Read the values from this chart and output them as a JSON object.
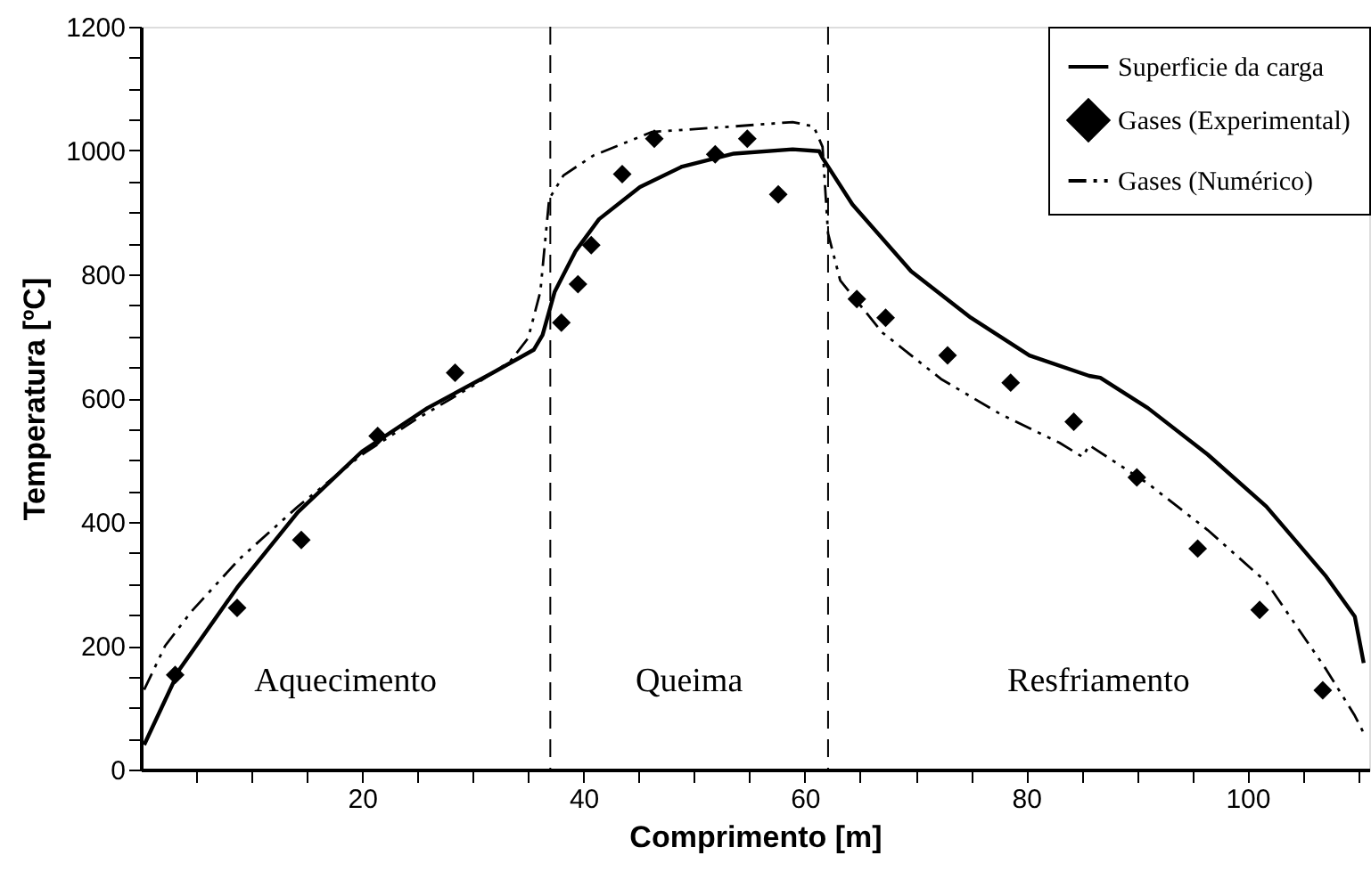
{
  "chart_data": {
    "type": "line",
    "xlabel": "Comprimento [m]",
    "ylabel": "Temperatura [ºC]",
    "xlim": [
      0,
      111
    ],
    "ylim": [
      0,
      1200
    ],
    "xticks": [
      {
        "value": 5,
        "label": null
      },
      {
        "value": 10,
        "label": null
      },
      {
        "value": 15,
        "label": null
      },
      20,
      {
        "value": 25,
        "label": null
      },
      {
        "value": 30,
        "label": null
      },
      {
        "value": 35,
        "label": null
      },
      40,
      {
        "value": 45,
        "label": null
      },
      {
        "value": 50,
        "label": null
      },
      {
        "value": 55,
        "label": null
      },
      60,
      {
        "value": 65,
        "label": null
      },
      {
        "value": 70,
        "label": null
      },
      {
        "value": 75,
        "label": null
      },
      80,
      {
        "value": 85,
        "label": null
      },
      {
        "value": 90,
        "label": null
      },
      {
        "value": 95,
        "label": null
      },
      100,
      {
        "value": 105,
        "label": null
      },
      {
        "value": 110,
        "label": null
      }
    ],
    "yticks": [
      0,
      {
        "value": 50,
        "label": null
      },
      {
        "value": 100,
        "label": null
      },
      {
        "value": 150,
        "label": null
      },
      200,
      {
        "value": 250,
        "label": null
      },
      {
        "value": 300,
        "label": null
      },
      {
        "value": 350,
        "label": null
      },
      400,
      {
        "value": 450,
        "label": null
      },
      {
        "value": 500,
        "label": null
      },
      {
        "value": 550,
        "label": null
      },
      600,
      {
        "value": 650,
        "label": null
      },
      {
        "value": 700,
        "label": null
      },
      {
        "value": 750,
        "label": null
      },
      800,
      {
        "value": 850,
        "label": null
      },
      {
        "value": 900,
        "label": null
      },
      {
        "value": 950,
        "label": null
      },
      1000,
      {
        "value": 1050,
        "label": null
      },
      {
        "value": 1100,
        "label": null
      },
      {
        "value": 1150,
        "label": null
      },
      1200
    ],
    "grid": false,
    "legend": "top right",
    "series": [
      {
        "name": "Superficie da carga",
        "type": "line",
        "line_style": "solid",
        "marker": "none",
        "color": "#000000",
        "x": [
          0.3,
          3.5,
          8.7,
          14.2,
          20,
          25.9,
          31.8,
          35.5,
          36.3,
          37.4,
          39.3,
          41.4,
          45.1,
          48.9,
          53.6,
          58.9,
          61.3,
          61.6,
          64.3,
          69.6,
          75,
          80.3,
          85.7,
          86.7,
          91,
          96.4,
          101.7,
          107.1,
          109.7,
          110.5
        ],
        "values": [
          40,
          162,
          294,
          416,
          514,
          584,
          641,
          678,
          702,
          772,
          838,
          889,
          941,
          974,
          995,
          1002,
          999,
          988,
          913,
          805,
          730,
          669,
          636,
          633,
          584,
          509,
          425,
          312,
          247,
          172
        ]
      },
      {
        "name": "Gases (Experimental)",
        "type": "scatter",
        "marker": "diamond",
        "color": "#000000",
        "x": [
          3.1,
          8.7,
          14.5,
          21.4,
          28.4,
          38.0,
          39.5,
          40.7,
          43.5,
          46.4,
          51.9,
          54.8,
          57.6,
          64.7,
          67.3,
          72.9,
          78.6,
          84.3,
          90.0,
          95.5,
          101.1,
          106.8
        ],
        "values": [
          153,
          261,
          371,
          539,
          641,
          722,
          784,
          847,
          962,
          1019,
          994,
          1019,
          929,
          760,
          730,
          669,
          625,
          562,
          472,
          357,
          258,
          128
        ]
      },
      {
        "name": "Gases (Numérico)",
        "type": "line",
        "line_style": "dashdotdot",
        "marker": "none",
        "color": "#000000",
        "x": [
          0.3,
          2.2,
          4.6,
          8.9,
          14.2,
          20,
          24.9,
          30.2,
          33.4,
          35,
          36.1,
          36.9,
          38.2,
          40.9,
          46.2,
          53.6,
          58.9,
          60.8,
          61.6,
          62.1,
          63.2,
          67,
          72.3,
          77.6,
          83,
          85.1,
          85.7,
          91,
          96.4,
          101.7,
          107.1,
          109.7,
          110.5
        ],
        "values": [
          129,
          200,
          256,
          340,
          425,
          509,
          566,
          622,
          660,
          697,
          772,
          922,
          960,
          992,
          1030,
          1039,
          1046,
          1039,
          1006,
          866,
          790,
          706,
          631,
          575,
          528,
          505,
          524,
          462,
          387,
          303,
          162,
          87,
          59
        ]
      }
    ],
    "ref_lines": [
      {
        "axis": "x",
        "value": 37.0,
        "line_style": "dashed",
        "color": "#000000"
      },
      {
        "axis": "x",
        "value": 62.1,
        "line_style": "dashed",
        "color": "#000000"
      }
    ],
    "annotations": [
      "Aquecimento",
      "Queima",
      "Resfriamento"
    ]
  }
}
